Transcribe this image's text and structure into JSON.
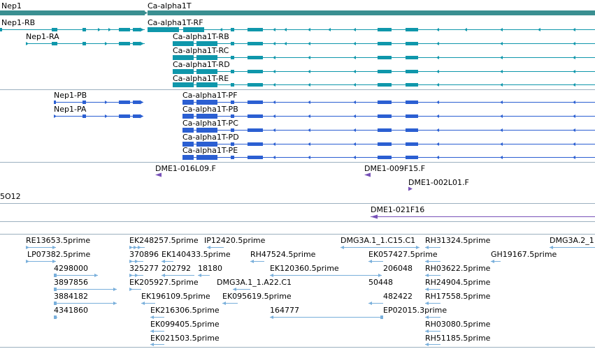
{
  "colors": {
    "gene": "#3a8f91",
    "transcript": "#0f97ab",
    "protein": "#2b5fd2",
    "est_clone": "#7751b8",
    "est": "#79afdb",
    "divider": "#9bb0bf"
  },
  "genes": {
    "left": "Nep1",
    "right": "Ca-alpha1T"
  },
  "transcripts": [
    "Nep1-RB",
    "Nep1-RA",
    "Ca-alpha1T-RF",
    "Ca-alpha1T-RB",
    "Ca-alpha1T-RC",
    "Ca-alpha1T-RD",
    "Ca-alpha1T-RE"
  ],
  "proteins": [
    "Nep1-PB",
    "Nep1-PA",
    "Ca-alpha1T-PF",
    "Ca-alpha1T-PB",
    "Ca-alpha1T-PC",
    "Ca-alpha1T-PD",
    "Ca-alpha1T-PE"
  ],
  "clones_a": [
    "DME1-016L09.F",
    "DME1-009F15.F",
    "DME1-002L01.F"
  ],
  "clones_b": [
    "5O12",
    "DME1-021F16"
  ],
  "ests": [
    "RE13653.5prime",
    "LP07382.5prime",
    "4298000",
    "3897856",
    "3884182",
    "4341860",
    "EK248257.5prime",
    "370896",
    "325277",
    "EK205927.5prime",
    "EK196109.5prime",
    "EK216306.5prime",
    "EK099405.5prime",
    "EK021503.5prime",
    "EK140433.5prime",
    "202792",
    "18180",
    "IP12420.5prime",
    "RH47524.5prime",
    "DMG3A.1_1.A22.C1",
    "EK095619.5prime",
    "DMG3A.1_1.C15.C1",
    "EK120360.5prime",
    "164777",
    "EK057427.5prime",
    "206048",
    "50448",
    "482422",
    "EP02015.3prime",
    "RH31324.5prime",
    "RH03622.5prime",
    "RH24904.5prime",
    "RH17558.5prime",
    "RH03080.5prime",
    "RH51185.5prime",
    "GH19167.5prime",
    "DMG3A.2_1"
  ]
}
